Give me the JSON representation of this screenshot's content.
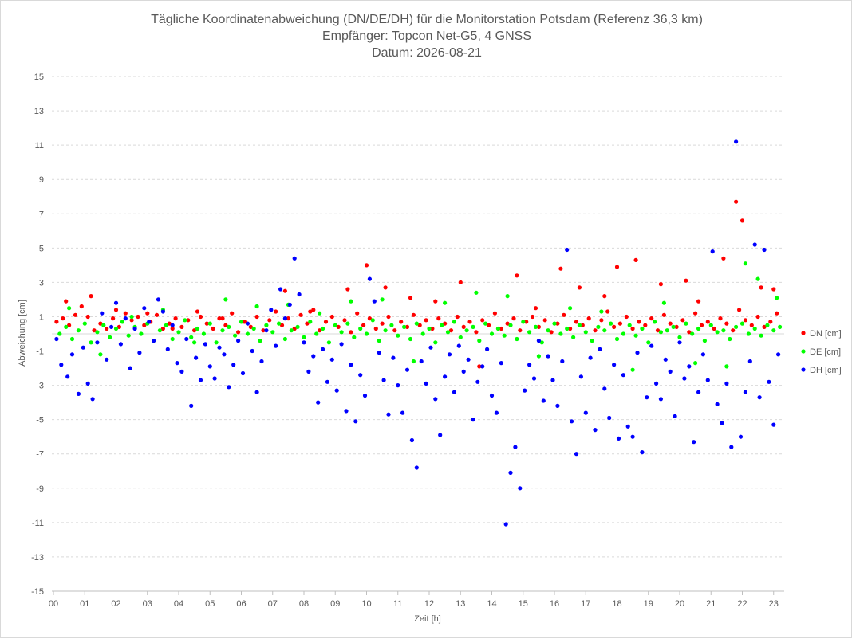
{
  "chart_data": {
    "type": "scatter",
    "title": [
      "Tägliche Koordinatenabweichung (DN/DE/DH) für die Monitorstation Potsdam (Referenz 36,3 km)",
      "Empfänger: Topcon Net-G5, 4 GNSS",
      "Datum: 2026-08-21"
    ],
    "xlabel": "Zeit [h]",
    "ylabel": "Abweichung [cm]",
    "xlim": [
      0,
      23.3
    ],
    "ylim": [
      -15,
      15
    ],
    "x_ticks": [
      "00",
      "01",
      "02",
      "03",
      "04",
      "05",
      "06",
      "07",
      "08",
      "09",
      "10",
      "11",
      "12",
      "13",
      "14",
      "15",
      "16",
      "17",
      "18",
      "19",
      "20",
      "21",
      "22",
      "23"
    ],
    "y_ticks": [
      15,
      13,
      11,
      9,
      7,
      5,
      3,
      1,
      -1,
      -3,
      -5,
      -7,
      -9,
      -11,
      -13,
      -15
    ],
    "grid": "horizontal dashed",
    "legend_position": "right",
    "series": [
      {
        "name": "DN [cm]",
        "color": "#ff0000",
        "x": [
          0.1,
          0.3,
          0.5,
          0.7,
          0.9,
          1.1,
          1.3,
          1.5,
          1.7,
          1.9,
          2.1,
          2.3,
          2.5,
          2.7,
          2.9,
          3.1,
          3.3,
          3.5,
          3.7,
          3.9,
          4.1,
          4.3,
          4.5,
          4.7,
          4.9,
          5.1,
          5.3,
          5.5,
          5.7,
          5.9,
          6.1,
          6.3,
          6.5,
          6.7,
          6.9,
          7.1,
          7.3,
          7.5,
          7.7,
          7.9,
          8.1,
          8.3,
          8.5,
          8.7,
          8.9,
          9.1,
          9.3,
          9.5,
          9.7,
          9.9,
          10.1,
          10.3,
          10.5,
          10.7,
          10.9,
          11.1,
          11.3,
          11.5,
          11.7,
          11.9,
          12.1,
          12.3,
          12.5,
          12.7,
          12.9,
          13.1,
          13.3,
          13.5,
          13.7,
          13.9,
          14.1,
          14.3,
          14.5,
          14.7,
          14.9,
          15.1,
          15.3,
          15.5,
          15.7,
          15.9,
          16.1,
          16.3,
          16.5,
          16.7,
          16.9,
          17.1,
          17.3,
          17.5,
          17.7,
          17.9,
          18.1,
          18.3,
          18.5,
          18.7,
          18.9,
          19.1,
          19.3,
          19.5,
          19.7,
          19.9,
          20.1,
          20.3,
          20.5,
          20.7,
          20.9,
          21.1,
          21.3,
          21.5,
          21.7,
          21.9,
          22.1,
          22.3,
          22.5,
          22.7,
          22.9,
          23.1,
          0.4,
          1.2,
          2.0,
          3.0,
          3.8,
          4.6,
          5.4,
          6.6,
          7.4,
          8.2,
          9.4,
          10.0,
          10.6,
          11.4,
          12.2,
          13.0,
          13.6,
          14.8,
          15.4,
          16.2,
          16.8,
          17.6,
          18.0,
          18.6,
          19.4,
          20.2,
          20.6,
          21.4,
          21.8,
          22.0,
          22.6,
          23.0
        ],
        "y": [
          0.7,
          0.9,
          0.5,
          1.1,
          1.6,
          1.0,
          0.2,
          0.6,
          0.3,
          0.9,
          0.4,
          1.2,
          0.8,
          1.0,
          0.5,
          0.7,
          1.1,
          0.3,
          0.6,
          0.9,
          0.4,
          0.8,
          0.2,
          1.0,
          0.6,
          0.3,
          0.9,
          0.5,
          1.2,
          0.1,
          0.7,
          0.4,
          1.0,
          0.2,
          0.8,
          1.3,
          0.5,
          0.9,
          0.3,
          1.1,
          0.6,
          1.4,
          0.2,
          0.7,
          1.0,
          0.4,
          0.8,
          0.1,
          1.2,
          0.5,
          0.9,
          0.3,
          0.6,
          1.0,
          0.2,
          0.7,
          0.4,
          1.1,
          0.5,
          0.8,
          0.3,
          0.9,
          0.6,
          0.2,
          1.0,
          0.4,
          0.7,
          0.1,
          0.8,
          0.5,
          1.2,
          0.3,
          0.6,
          0.9,
          0.2,
          0.7,
          1.0,
          0.4,
          0.8,
          0.1,
          0.6,
          1.1,
          0.3,
          0.7,
          0.5,
          0.9,
          0.2,
          0.8,
          1.3,
          0.4,
          0.6,
          1.0,
          0.3,
          0.7,
          0.5,
          0.9,
          0.2,
          1.1,
          0.6,
          0.4,
          0.8,
          0.1,
          1.2,
          0.5,
          0.7,
          0.3,
          0.9,
          0.6,
          0.2,
          1.4,
          0.8,
          0.5,
          1.0,
          0.4,
          0.7,
          1.2,
          1.9,
          2.2,
          1.4,
          1.2,
          0.3,
          1.3,
          0.9,
          -0.4,
          2.5,
          1.3,
          2.6,
          4.0,
          2.7,
          2.1,
          1.9,
          3.0,
          -1.9,
          3.4,
          1.5,
          3.8,
          2.7,
          2.2,
          3.9,
          4.3,
          2.9,
          3.1,
          1.9,
          4.4,
          7.7,
          6.6,
          2.7,
          2.6
        ]
      },
      {
        "name": "DE [cm]",
        "color": "#00ff00",
        "x": [
          0.2,
          0.4,
          0.6,
          0.8,
          1.0,
          1.2,
          1.4,
          1.6,
          1.8,
          2.0,
          2.2,
          2.4,
          2.6,
          2.8,
          3.0,
          3.2,
          3.4,
          3.6,
          3.8,
          4.0,
          4.2,
          4.4,
          4.6,
          4.8,
          5.0,
          5.2,
          5.4,
          5.6,
          5.8,
          6.0,
          6.2,
          6.4,
          6.6,
          6.8,
          7.0,
          7.2,
          7.4,
          7.6,
          7.8,
          8.0,
          8.2,
          8.4,
          8.6,
          8.8,
          9.0,
          9.2,
          9.4,
          9.6,
          9.8,
          10.0,
          10.2,
          10.4,
          10.6,
          10.8,
          11.0,
          11.2,
          11.4,
          11.6,
          11.8,
          12.0,
          12.2,
          12.4,
          12.6,
          12.8,
          13.0,
          13.2,
          13.4,
          13.6,
          13.8,
          14.0,
          14.2,
          14.4,
          14.6,
          14.8,
          15.0,
          15.2,
          15.4,
          15.6,
          15.8,
          16.0,
          16.2,
          16.4,
          16.6,
          16.8,
          17.0,
          17.2,
          17.4,
          17.6,
          17.8,
          18.0,
          18.2,
          18.4,
          18.6,
          18.8,
          19.0,
          19.2,
          19.4,
          19.6,
          19.8,
          20.0,
          20.2,
          20.4,
          20.6,
          20.8,
          21.0,
          21.2,
          21.4,
          21.6,
          21.8,
          22.0,
          22.2,
          22.4,
          22.6,
          22.8,
          23.0,
          23.2,
          0.5,
          1.5,
          2.5,
          3.5,
          4.5,
          5.5,
          6.5,
          7.5,
          8.5,
          9.5,
          10.5,
          11.5,
          12.5,
          13.5,
          14.5,
          15.5,
          16.5,
          17.5,
          18.5,
          19.5,
          20.5,
          21.5,
          22.1,
          22.5,
          23.1
        ],
        "y": [
          0.0,
          0.4,
          -0.3,
          0.2,
          0.6,
          -0.5,
          0.1,
          0.5,
          -0.2,
          0.3,
          0.7,
          -0.1,
          0.4,
          0.0,
          0.6,
          -0.4,
          0.2,
          0.5,
          -0.3,
          0.1,
          0.8,
          -0.2,
          0.3,
          0.0,
          0.6,
          -0.5,
          0.2,
          0.4,
          -0.1,
          0.7,
          0.0,
          0.3,
          -0.4,
          0.5,
          0.1,
          0.6,
          -0.3,
          0.2,
          0.4,
          -0.2,
          0.7,
          0.0,
          0.3,
          -0.5,
          0.5,
          0.1,
          0.6,
          -0.2,
          0.3,
          0.0,
          0.8,
          -0.4,
          0.2,
          0.5,
          -0.1,
          0.4,
          -0.3,
          0.6,
          0.0,
          0.3,
          -0.5,
          0.5,
          0.1,
          0.7,
          -0.2,
          0.2,
          0.4,
          -0.4,
          0.6,
          0.0,
          0.3,
          -0.1,
          0.5,
          -0.3,
          0.7,
          0.1,
          0.4,
          -0.5,
          0.2,
          0.6,
          0.0,
          0.3,
          -0.2,
          0.5,
          0.1,
          -0.4,
          0.4,
          0.2,
          0.6,
          -0.3,
          0.0,
          0.5,
          -0.1,
          0.3,
          -0.5,
          0.7,
          0.1,
          0.2,
          0.4,
          -0.2,
          0.6,
          0.0,
          0.3,
          -0.4,
          0.5,
          0.1,
          0.2,
          -0.3,
          0.4,
          0.6,
          0.0,
          0.3,
          -0.1,
          0.5,
          0.2,
          0.4,
          1.5,
          -1.2,
          1.0,
          1.4,
          -0.5,
          2.0,
          1.6,
          1.7,
          1.2,
          1.9,
          2.0,
          -1.6,
          1.8,
          2.4,
          2.2,
          -1.3,
          1.5,
          1.3,
          -2.1,
          1.8,
          -1.7,
          -1.9,
          4.1,
          3.2,
          2.1
        ]
      },
      {
        "name": "DH [cm]",
        "color": "#0000ff",
        "x": [
          0.1,
          0.25,
          0.45,
          0.6,
          0.8,
          0.95,
          1.1,
          1.25,
          1.4,
          1.55,
          1.7,
          1.85,
          2.0,
          2.15,
          2.3,
          2.45,
          2.6,
          2.75,
          2.9,
          3.05,
          3.2,
          3.35,
          3.5,
          3.65,
          3.8,
          3.95,
          4.1,
          4.25,
          4.4,
          4.55,
          4.7,
          4.85,
          5.0,
          5.15,
          5.3,
          5.45,
          5.6,
          5.75,
          5.9,
          6.05,
          6.2,
          6.35,
          6.5,
          6.65,
          6.8,
          6.95,
          7.1,
          7.25,
          7.4,
          7.55,
          7.7,
          7.85,
          8.0,
          8.15,
          8.3,
          8.45,
          8.6,
          8.75,
          8.9,
          9.05,
          9.2,
          9.35,
          9.5,
          9.65,
          9.8,
          9.95,
          10.1,
          10.25,
          10.4,
          10.55,
          10.7,
          10.85,
          11.0,
          11.15,
          11.3,
          11.45,
          11.6,
          11.75,
          11.9,
          12.05,
          12.2,
          12.35,
          12.5,
          12.65,
          12.8,
          12.95,
          13.1,
          13.25,
          13.4,
          13.55,
          13.7,
          13.85,
          14.0,
          14.15,
          14.3,
          14.45,
          14.6,
          14.75,
          14.9,
          15.05,
          15.2,
          15.35,
          15.5,
          15.65,
          15.8,
          15.95,
          16.1,
          16.25,
          16.4,
          16.55,
          16.7,
          16.85,
          17.0,
          17.15,
          17.3,
          17.45,
          17.6,
          17.75,
          17.9,
          18.05,
          18.2,
          18.35,
          18.5,
          18.65,
          18.8,
          18.95,
          19.1,
          19.25,
          19.4,
          19.55,
          19.7,
          19.85,
          20.0,
          20.15,
          20.3,
          20.45,
          20.6,
          20.75,
          20.9,
          21.05,
          21.2,
          21.35,
          21.5,
          21.65,
          21.8,
          21.95,
          22.1,
          22.25,
          22.4,
          22.55,
          22.7,
          22.85,
          23.0,
          23.15
        ],
        "y": [
          -0.3,
          -1.8,
          -2.5,
          -1.2,
          -3.5,
          -0.8,
          -2.9,
          -3.8,
          -0.5,
          1.2,
          -1.5,
          0.4,
          1.8,
          -0.6,
          0.9,
          -2.0,
          0.3,
          -1.1,
          1.5,
          0.7,
          -0.4,
          2.0,
          1.3,
          -0.9,
          0.5,
          -1.7,
          -2.2,
          -0.3,
          -4.2,
          -1.4,
          -2.7,
          -0.6,
          -1.9,
          -2.6,
          -0.8,
          -1.2,
          -3.1,
          -1.8,
          -0.4,
          -2.3,
          0.6,
          -1.0,
          -3.4,
          -1.6,
          0.2,
          1.4,
          -0.7,
          2.6,
          0.9,
          1.7,
          4.4,
          2.3,
          -0.5,
          -2.2,
          -1.3,
          -4.0,
          -0.9,
          -2.8,
          -1.5,
          -3.3,
          -0.6,
          -4.5,
          -1.8,
          -5.1,
          -2.4,
          -3.6,
          3.2,
          1.9,
          -1.1,
          -2.7,
          -4.7,
          -1.4,
          -3.0,
          -4.6,
          -2.1,
          -6.2,
          -7.8,
          -1.6,
          -2.9,
          -0.8,
          -3.8,
          -5.9,
          -2.5,
          -1.2,
          -3.4,
          -0.7,
          -2.2,
          -1.5,
          -5.0,
          -2.8,
          -1.9,
          -0.9,
          -3.6,
          -4.6,
          -1.7,
          -11.1,
          -8.1,
          -6.6,
          -9.0,
          -3.3,
          -1.8,
          -2.6,
          -0.4,
          -3.9,
          -1.3,
          -2.7,
          -4.2,
          -1.6,
          4.9,
          -5.1,
          -7.0,
          -2.5,
          -4.6,
          -1.4,
          -5.6,
          -0.9,
          -3.2,
          -4.9,
          -1.8,
          -6.1,
          -2.4,
          -5.4,
          -6.0,
          -1.1,
          -6.9,
          -3.7,
          -0.7,
          -2.9,
          -3.8,
          -1.5,
          -2.2,
          -4.8,
          -0.5,
          -2.6,
          -1.9,
          -6.3,
          -3.4,
          -1.2,
          -2.7,
          4.8,
          -4.1,
          -5.2,
          -2.9,
          -6.6,
          11.2,
          -6.0,
          -3.4,
          -1.6,
          5.2,
          -3.7,
          4.9,
          -2.8,
          -5.3,
          -1.2
        ]
      }
    ]
  }
}
